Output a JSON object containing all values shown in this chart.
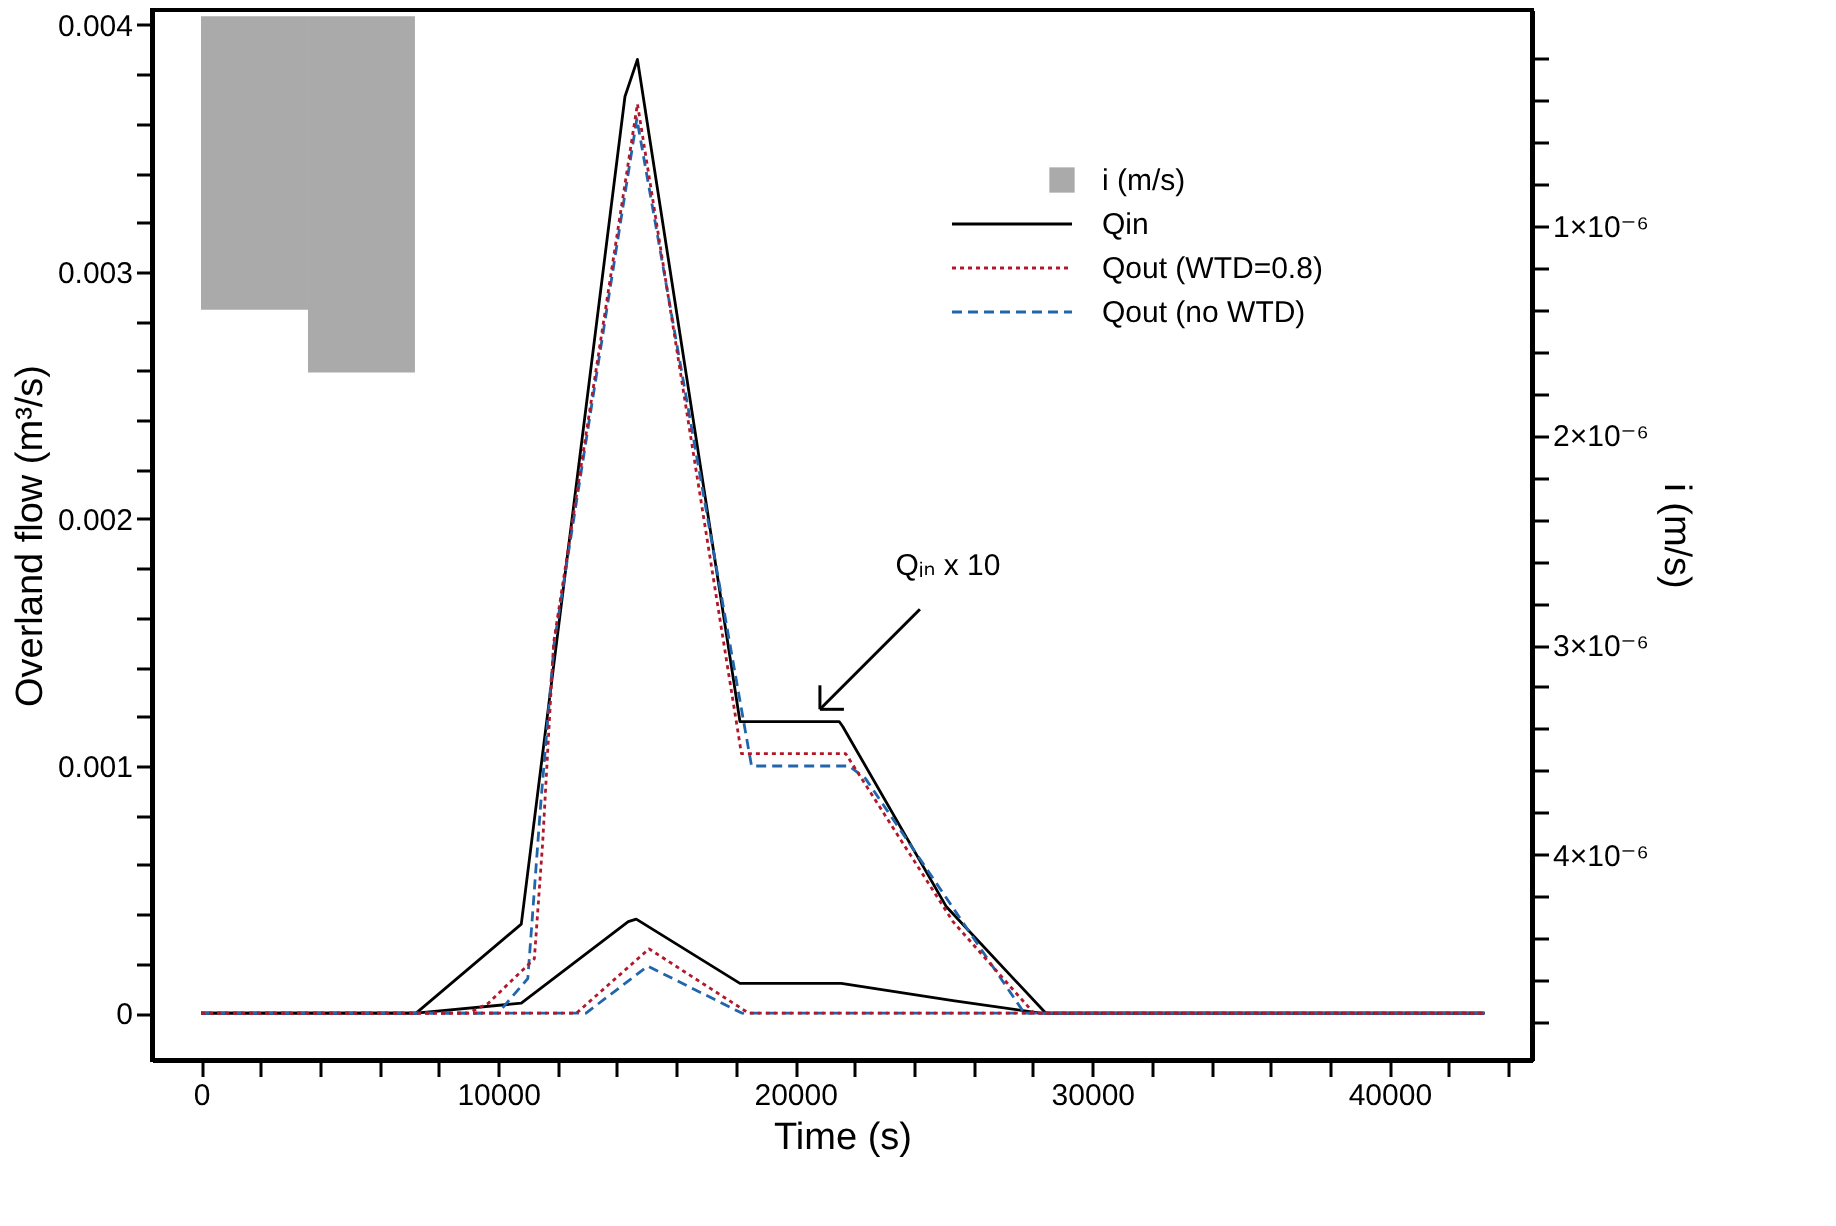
{
  "chart_data": {
    "type": "line",
    "xlabel": "Time (s)",
    "ylabel": "Overland flow (m³/s)",
    "y2label": "i (m/s)",
    "xlim": [
      -1650,
      44800
    ],
    "xticks": [
      0,
      {
        "value": 2000,
        "label": null
      },
      {
        "value": 4000,
        "label": null
      },
      {
        "value": 6000,
        "label": null
      },
      {
        "value": 8000,
        "label": null
      },
      10000,
      {
        "value": 12000,
        "label": null
      },
      {
        "value": 14000,
        "label": null
      },
      {
        "value": 16000,
        "label": null
      },
      {
        "value": 18000,
        "label": null
      },
      20000,
      {
        "value": 22000,
        "label": null
      },
      {
        "value": 24000,
        "label": null
      },
      {
        "value": 26000,
        "label": null
      },
      {
        "value": 28000,
        "label": null
      },
      30000,
      {
        "value": 32000,
        "label": null
      },
      {
        "value": 34000,
        "label": null
      },
      {
        "value": 36000,
        "label": null
      },
      {
        "value": 38000,
        "label": null
      },
      40000,
      {
        "value": 42000,
        "label": null
      },
      {
        "value": 44000,
        "label": null
      }
    ],
    "ylim": [
      -0.00019,
      0.00406
    ],
    "yticks": [
      0,
      {
        "value": 0.0002,
        "label": null
      },
      {
        "value": 0.0004,
        "label": null
      },
      {
        "value": 0.0006,
        "label": null
      },
      {
        "value": 0.0008,
        "label": null
      },
      0.001,
      {
        "value": 0.0012,
        "label": null
      },
      {
        "value": 0.0014,
        "label": null
      },
      {
        "value": 0.0016,
        "label": null
      },
      {
        "value": 0.0018,
        "label": null
      },
      0.002,
      {
        "value": 0.0022,
        "label": null
      },
      {
        "value": 0.0024,
        "label": null
      },
      {
        "value": 0.0026,
        "label": null
      },
      {
        "value": 0.0028,
        "label": null
      },
      0.003,
      {
        "value": 0.0032,
        "label": null
      },
      {
        "value": 0.0034,
        "label": null
      },
      {
        "value": 0.0036,
        "label": null
      },
      {
        "value": 0.0038,
        "label": null
      },
      0.004
    ],
    "y2lim": [
      4.98e-06,
      -3e-08
    ],
    "y2ticks": [
      {
        "value": 2e-07,
        "label": null
      },
      {
        "value": 4e-07,
        "label": null
      },
      {
        "value": 6e-07,
        "label": null
      },
      {
        "value": 8e-07,
        "label": null
      },
      {
        "value": 1e-06,
        "label": "1×10⁻⁶"
      },
      {
        "value": 1.2e-06,
        "label": null
      },
      {
        "value": 1.4e-06,
        "label": null
      },
      {
        "value": 1.6e-06,
        "label": null
      },
      {
        "value": 1.8e-06,
        "label": null
      },
      {
        "value": 2e-06,
        "label": "2×10⁻⁶"
      },
      {
        "value": 2.2e-06,
        "label": null
      },
      {
        "value": 2.4e-06,
        "label": null
      },
      {
        "value": 2.6e-06,
        "label": null
      },
      {
        "value": 2.8e-06,
        "label": null
      },
      {
        "value": 3e-06,
        "label": "3×10⁻⁶"
      },
      {
        "value": 3.2e-06,
        "label": null
      },
      {
        "value": 3.4e-06,
        "label": null
      },
      {
        "value": 3.6e-06,
        "label": null
      },
      {
        "value": 3.8e-06,
        "label": null
      },
      {
        "value": 4e-06,
        "label": "4×10⁻⁶"
      },
      {
        "value": 4.2e-06,
        "label": null
      },
      {
        "value": 4.4e-06,
        "label": null
      },
      {
        "value": 4.6e-06,
        "label": null
      },
      {
        "value": 4.8e-06,
        "label": null
      }
    ],
    "grid": false,
    "legend": "top right",
    "annotations": [
      "Qᵢₙ x 10"
    ],
    "series": [
      {
        "name": "i (m/s)",
        "type": "histogram",
        "axis": "y2",
        "color": "#aaaaaa",
        "bins": [
          0,
          3600,
          7200
        ],
        "values": [
          1.4e-06,
          1.7e-06
        ]
      },
      {
        "name": "Qin",
        "line_style": "solid",
        "color": "#000000",
        "x": [
          0,
          7240,
          10780,
          14270,
          14690,
          18140,
          21480,
          21600,
          25090,
          28430,
          43200
        ],
        "values": [
          0,
          0,
          0.00036,
          0.00371,
          0.00386,
          0.00118,
          0.00118,
          0.00116,
          0.00043,
          0,
          0
        ]
      },
      {
        "name": "Qout (WTD=0.8)",
        "line_style": "dotted",
        "color": "#b2182b",
        "x": [
          0,
          9000,
          9670,
          11220,
          11500,
          11870,
          14690,
          18190,
          21700,
          25310,
          28030,
          43200
        ],
        "values": [
          0,
          0,
          4e-05,
          0.00022,
          0.00069,
          0.0015,
          0.00368,
          0.00105,
          0.00105,
          0.00037,
          0,
          0
        ]
      },
      {
        "name": "Qout (no WTD)",
        "line_style": "dashed",
        "color": "#2166ac",
        "x": [
          0,
          10000,
          11000,
          11430,
          11890,
          14670,
          18530,
          21810,
          22360,
          27710,
          43200
        ],
        "values": [
          0,
          0,
          0.00014,
          0.00084,
          0.0015,
          0.00362,
          0.001,
          0.001,
          0.00095,
          0,
          0
        ]
      },
      {
        "line_style": "solid",
        "color": "#000000",
        "x": [
          0,
          7240,
          10780,
          14380,
          14650,
          18140,
          21550,
          25310,
          28260,
          43200
        ],
        "values": [
          0,
          0,
          4e-05,
          0.00037,
          0.00038,
          0.00012,
          0.00012,
          5e-05,
          0,
          0
        ]
      },
      {
        "line_style": "dotted",
        "color": "#b2182b",
        "x": [
          0,
          12640,
          15080,
          18430,
          43200
        ],
        "values": [
          0,
          0,
          0.00026,
          0,
          0
        ]
      },
      {
        "line_style": "dashed",
        "color": "#2166ac",
        "x": [
          0,
          12960,
          15040,
          18200,
          43200
        ],
        "values": [
          0,
          0,
          0.00019,
          0,
          0
        ]
      }
    ]
  }
}
